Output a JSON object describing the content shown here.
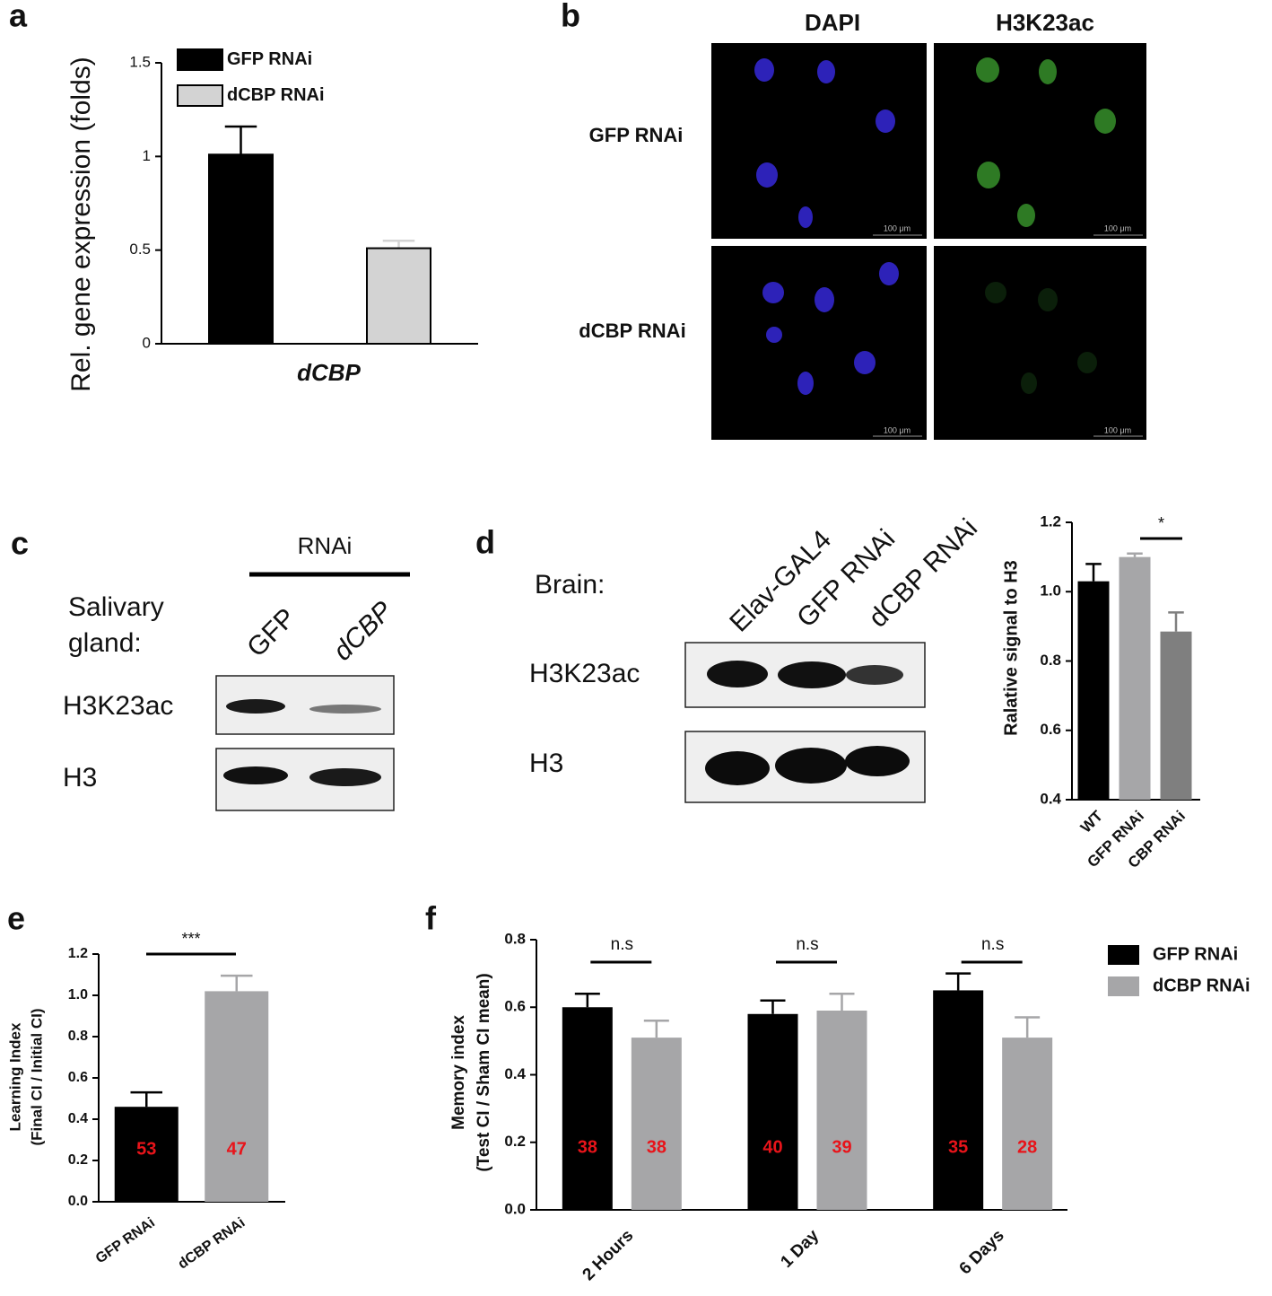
{
  "panel_labels": [
    "a",
    "b",
    "c",
    "d",
    "e",
    "f"
  ],
  "microscopy": {
    "columns": [
      "DAPI",
      "H3K23ac"
    ],
    "rows": [
      "GFP RNAi",
      "dCBP RNAi"
    ],
    "scale_bar": "100 μm"
  },
  "blot_c": {
    "header": "RNAi",
    "tissue": [
      "Salivary",
      "gland:"
    ],
    "lanes": [
      "GFP",
      "dCBP"
    ],
    "bands": [
      "H3K23ac",
      "H3"
    ]
  },
  "blot_d": {
    "tissue": "Brain:",
    "lanes": [
      "Elav-GAL4",
      "GFP RNAi",
      "dCBP RNAi"
    ],
    "bands": [
      "H3K23ac",
      "H3"
    ]
  },
  "chart_data": [
    {
      "type": "bar",
      "ylabel": [
        "Rel. gene expression (folds)"
      ],
      "categories": [
        "dCBP"
      ],
      "series": [
        {
          "name": "GFP RNAi",
          "color": "#000000",
          "values": [
            1.01
          ],
          "errors": [
            0.15
          ]
        },
        {
          "name": "dCBP RNAi",
          "color": "#d3d3d3",
          "values": [
            0.51
          ],
          "errors": [
            0.04
          ]
        }
      ],
      "ylim": [
        0,
        1.5
      ],
      "yticks": [
        0,
        0.5,
        1,
        1.5
      ]
    },
    {
      "type": "bar",
      "ylabel": [
        "Ralative signal to H3"
      ],
      "categories": [
        "WT",
        "GFP RNAi",
        "CBP RNAi"
      ],
      "values": [
        1.03,
        1.1,
        0.885
      ],
      "errors": [
        0.05,
        0.01,
        0.055
      ],
      "colors": [
        "#000000",
        "#a6a6a8",
        "#7f7f7f"
      ],
      "ylim": [
        0.4,
        1.2
      ],
      "yticks": [
        0.4,
        0.6,
        0.8,
        {
          "value": 1,
          "label": "1.0"
        },
        1.2
      ],
      "annotations": [
        "*"
      ]
    },
    {
      "type": "bar",
      "ylabel": [
        "Learning Index",
        "(Final CI / Initial CI)"
      ],
      "categories": [
        "GFP RNAi",
        "dCBP RNAi"
      ],
      "values": [
        0.46,
        1.02
      ],
      "errors": [
        0.07,
        0.075
      ],
      "colors": [
        "#000000",
        "#a6a6a8"
      ],
      "n": [
        53,
        47
      ],
      "ylim": [
        0,
        1.2
      ],
      "yticks": [
        {
          "value": 0,
          "label": "0.0"
        },
        0.2,
        0.4,
        0.6,
        0.8,
        {
          "value": 1,
          "label": "1.0"
        },
        1.2
      ],
      "annotations": [
        "***"
      ]
    },
    {
      "type": "bar",
      "ylabel": [
        "Memory index",
        "(Test CI / Sham CI mean)"
      ],
      "categories": [
        "2 Hours",
        "1 Day",
        "6 Days"
      ],
      "series": [
        {
          "name": "GFP RNAi",
          "color": "#000000",
          "values": [
            0.6,
            0.58,
            0.65
          ],
          "errors": [
            0.04,
            0.04,
            0.05
          ],
          "n": [
            38,
            40,
            35
          ]
        },
        {
          "name": "dCBP RNAi",
          "color": "#a6a6a8",
          "values": [
            0.51,
            0.59,
            0.51
          ],
          "errors": [
            0.05,
            0.05,
            0.06
          ],
          "n": [
            38,
            39,
            28
          ]
        }
      ],
      "ylim": [
        0,
        0.8
      ],
      "yticks": [
        {
          "value": 0,
          "label": "0.0"
        },
        0.2,
        0.4,
        0.6,
        0.8
      ],
      "annotations": [
        "n.s",
        "n.s",
        "n.s"
      ]
    }
  ]
}
